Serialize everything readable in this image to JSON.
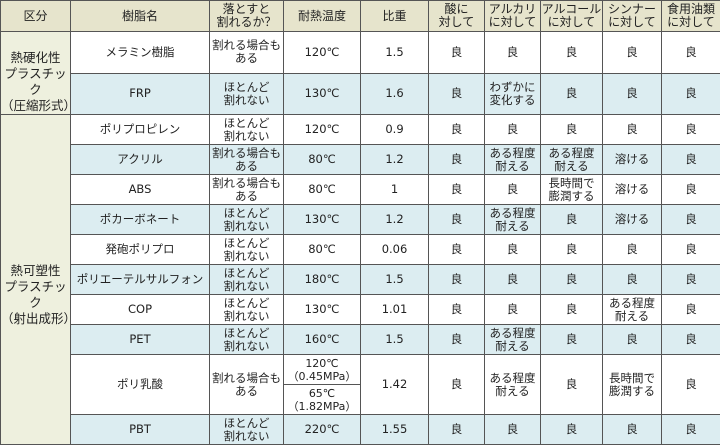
{
  "headers": [
    "区分",
    "樹脂名",
    "落とすと\n割れるか？",
    "耐熱温度",
    "比重",
    "酸に\n対して",
    "アルカリ\nに対して",
    "アルコール\nに対して",
    "シンナー\nに対して",
    "食用油類\nに対して"
  ],
  "categories": [
    {
      "label": "熱硬化性\nプラスチック\n（圧縮形式）",
      "rows": 2
    },
    {
      "label": "熱可塑性\nプラスチック\n（射出成形）",
      "rows": 10
    }
  ],
  "rows": [
    {
      "resin": "メラミン樹脂",
      "drop": "割れる場合も\nある",
      "heat": [
        "120℃"
      ],
      "gravity": "1.5",
      "acid": "良",
      "alkali": "良",
      "alcohol": "良",
      "thinner": "良",
      "oil": "良"
    },
    {
      "resin": "FRP",
      "drop": "ほとんど\n割れない",
      "heat": [
        "130℃"
      ],
      "gravity": "1.6",
      "acid": "良",
      "alkali": "わずかに\n変化する",
      "alcohol": "良",
      "thinner": "良",
      "oil": "良"
    },
    {
      "resin": "ポリプロピレン",
      "drop": "ほとんど\n割れない",
      "heat": [
        "120℃"
      ],
      "gravity": "0.9",
      "acid": "良",
      "alkali": "良",
      "alcohol": "良",
      "thinner": "良",
      "oil": "良"
    },
    {
      "resin": "アクリル",
      "drop": "割れる場合も\nある",
      "heat": [
        "80℃"
      ],
      "gravity": "1.2",
      "acid": "良",
      "alkali": "ある程度\n耐える",
      "alcohol": "ある程度\n耐える",
      "thinner": "溶ける",
      "oil": "良"
    },
    {
      "resin": "ABS",
      "drop": "割れる場合も\nある",
      "heat": [
        "80℃"
      ],
      "gravity": "1",
      "acid": "良",
      "alkali": "良",
      "alcohol": "長時間で\n膨潤する",
      "thinner": "溶ける",
      "oil": "良"
    },
    {
      "resin": "ポカーボネート",
      "drop": "ほとんど\n割れない",
      "heat": [
        "130℃"
      ],
      "gravity": "1.2",
      "acid": "良",
      "alkali": "ある程度\n耐える",
      "alcohol": "良",
      "thinner": "溶ける",
      "oil": "良"
    },
    {
      "resin": "発砲ポリプロ",
      "drop": "ほとんど\n割れない",
      "heat": [
        "80℃"
      ],
      "gravity": "0.06",
      "acid": "良",
      "alkali": "良",
      "alcohol": "良",
      "thinner": "良",
      "oil": "良"
    },
    {
      "resin": "ポリエーテルサルフォン",
      "drop": "ほとんど\n割れない",
      "heat": [
        "180℃"
      ],
      "gravity": "1.5",
      "acid": "良",
      "alkali": "良",
      "alcohol": "良",
      "thinner": "良",
      "oil": "良"
    },
    {
      "resin": "COP",
      "drop": "ほとんど\n割れない",
      "heat": [
        "130℃"
      ],
      "gravity": "1.01",
      "acid": "良",
      "alkali": "良",
      "alcohol": "良",
      "thinner": "ある程度\n耐える",
      "oil": "良"
    },
    {
      "resin": "PET",
      "drop": "ほとんど\n割れない",
      "heat": [
        "160℃"
      ],
      "gravity": "1.5",
      "acid": "良",
      "alkali": "ある程度\n耐える",
      "alcohol": "良",
      "thinner": "良",
      "oil": "良"
    },
    {
      "resin": "ポリ乳酸",
      "drop": "割れる場合も\nある",
      "heat": [
        "120℃\n（0.45MPa）",
        "65℃\n（1.82MPa）"
      ],
      "gravity": "1.42",
      "acid": "良",
      "alkali": "ある程度\n耐える",
      "alcohol": "良",
      "thinner": "長時間で\n膨潤する",
      "oil": "良"
    },
    {
      "resin": "PBT",
      "drop": "ほとんど\n割れない",
      "heat": [
        "220℃"
      ],
      "gravity": "1.55",
      "acid": "良",
      "alkali": "良",
      "alcohol": "良",
      "thinner": "良",
      "oil": "良"
    }
  ],
  "colors": {
    "header_bg": "#e6e4cc",
    "category_bg": "#eef0de",
    "row_alt_bg": "#dcedf1",
    "border": "#555555"
  }
}
